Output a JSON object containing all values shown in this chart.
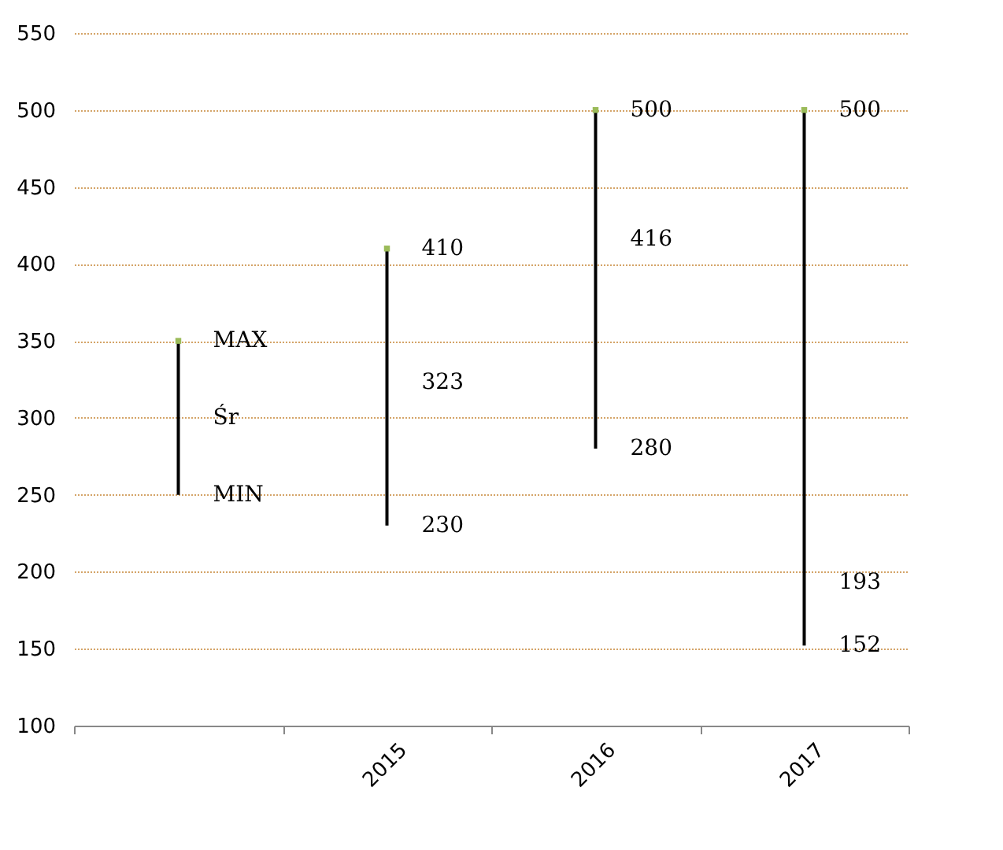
{
  "chart_data": {
    "type": "bar",
    "categories": [
      null,
      "2015",
      "2016",
      "2017"
    ],
    "series": [
      {
        "color": "#000000",
        "base": [
          250,
          230,
          280,
          152
        ],
        "values": [
          100,
          180,
          220,
          348
        ]
      },
      {
        "type": "scatter",
        "color": "#9bbb59",
        "marker": "square",
        "values": [
          350,
          410,
          500,
          500
        ]
      }
    ],
    "annotations": [
      "MAX",
      "Śr",
      "MIN",
      {
        "text": "410",
        "x": "2015",
        "y": 410
      },
      {
        "text": "323",
        "x": "2015",
        "y": 323
      },
      {
        "text": "230",
        "x": "2015",
        "y": 230
      },
      {
        "text": "500",
        "x": "2016",
        "y": 500
      },
      {
        "text": "416",
        "x": "2016",
        "y": 416
      },
      {
        "text": "280",
        "x": "2016",
        "y": 280
      },
      {
        "text": "500",
        "x": "2017",
        "y": 500
      },
      {
        "text": "193",
        "x": "2017",
        "y": 193
      },
      {
        "text": "152",
        "x": "2017",
        "y": 152
      }
    ],
    "ylim": [
      100,
      550
    ],
    "yticks": [
      100,
      150,
      200,
      250,
      300,
      350,
      400,
      450,
      500,
      550
    ],
    "grid": "y"
  }
}
